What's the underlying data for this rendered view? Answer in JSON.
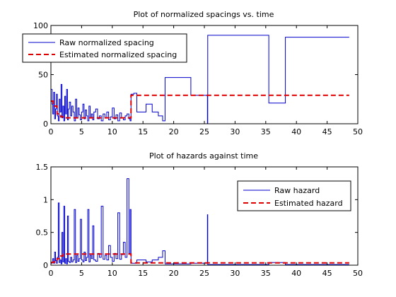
{
  "chart_data": [
    {
      "type": "line",
      "title": "Plot of normalized spacings vs. time",
      "xlabel": "",
      "ylabel": "",
      "xlim": [
        0,
        50
      ],
      "ylim": [
        0,
        100
      ],
      "xticks": [
        "0",
        "5",
        "10",
        "15",
        "20",
        "25",
        "30",
        "35",
        "40",
        "45",
        "50"
      ],
      "yticks": [
        "0",
        "50",
        "100"
      ],
      "grid": false,
      "legend_position": "top-left",
      "series": [
        {
          "name": "Raw normalized spacing",
          "color": "#0000cc",
          "style": "solid-stairs",
          "x": [
            0.05,
            0.2,
            0.3,
            0.45,
            0.6,
            0.75,
            0.9,
            1.05,
            1.2,
            1.35,
            1.5,
            1.65,
            1.8,
            1.95,
            2.1,
            2.25,
            2.4,
            2.55,
            2.7,
            2.85,
            3.0,
            3.2,
            3.4,
            3.6,
            3.8,
            4.0,
            4.2,
            4.4,
            4.6,
            4.8,
            5.0,
            5.2,
            5.4,
            5.6,
            5.8,
            6.0,
            6.2,
            6.4,
            6.6,
            6.8,
            7.0,
            7.3,
            7.6,
            7.9,
            8.2,
            8.5,
            8.8,
            9.1,
            9.4,
            9.7,
            10.0,
            10.3,
            10.6,
            10.9,
            11.2,
            11.5,
            11.8,
            12.1,
            12.4,
            12.7,
            12.9,
            13.05,
            13.5,
            14.0,
            15.5,
            16.5,
            17.5,
            18.2,
            18.6,
            19.0,
            22.8,
            25.5,
            25.55,
            25.7,
            35.5,
            38.2,
            48.6
          ],
          "y": [
            35,
            20,
            10,
            32,
            5,
            15,
            30,
            8,
            3,
            25,
            12,
            40,
            6,
            18,
            3,
            28,
            10,
            35,
            4,
            15,
            22,
            8,
            18,
            12,
            3,
            25,
            6,
            16,
            9,
            4,
            12,
            20,
            5,
            14,
            8,
            3,
            18,
            6,
            10,
            4,
            12,
            15,
            5,
            8,
            3,
            10,
            6,
            12,
            4,
            7,
            16,
            5,
            9,
            3,
            11,
            6,
            4,
            8,
            10,
            5,
            3,
            30,
            31,
            12,
            20,
            12,
            8,
            3,
            47,
            47,
            29,
            0,
            90,
            90,
            21,
            88,
            88
          ]
        },
        {
          "name": "Estimated normalized spacing",
          "color": "#e00000",
          "style": "dashed-stairs",
          "x": [
            0.05,
            0.4,
            1.0,
            1.6,
            2.0,
            13.05,
            48.6
          ],
          "y": [
            23,
            18,
            10,
            7,
            6,
            29,
            29
          ]
        }
      ]
    },
    {
      "type": "line",
      "title": "Plot of hazards against time",
      "xlabel": "",
      "ylabel": "",
      "xlim": [
        0,
        50
      ],
      "ylim": [
        0,
        1.5
      ],
      "xticks": [
        "0",
        "5",
        "10",
        "15",
        "20",
        "25",
        "30",
        "35",
        "40",
        "45",
        "50"
      ],
      "yticks": [
        "0",
        "0.5",
        "1",
        "1.5"
      ],
      "grid": false,
      "legend_position": "top-right",
      "series": [
        {
          "name": "Raw hazard",
          "color": "#0000cc",
          "style": "solid-stairs",
          "x": [
            0.05,
            0.2,
            0.3,
            0.45,
            0.6,
            0.75,
            0.9,
            1.05,
            1.2,
            1.35,
            1.5,
            1.65,
            1.8,
            1.95,
            2.1,
            2.25,
            2.4,
            2.55,
            2.7,
            2.85,
            3.0,
            3.2,
            3.4,
            3.6,
            3.8,
            4.0,
            4.2,
            4.4,
            4.6,
            4.8,
            5.0,
            5.2,
            5.4,
            5.6,
            5.8,
            6.0,
            6.2,
            6.4,
            6.6,
            6.8,
            7.0,
            7.3,
            7.6,
            7.9,
            8.2,
            8.5,
            8.8,
            9.1,
            9.4,
            9.7,
            10.0,
            10.3,
            10.6,
            10.9,
            11.2,
            11.5,
            11.8,
            12.1,
            12.4,
            12.7,
            12.9,
            13.05,
            13.5,
            14.0,
            15.5,
            16.5,
            17.5,
            18.2,
            18.6,
            19.0,
            22.8,
            25.5,
            25.55,
            25.7,
            35.5,
            38.2,
            48.6
          ],
          "y": [
            0.03,
            0.05,
            0.1,
            0.03,
            0.2,
            0.07,
            0.03,
            0.12,
            0.95,
            0.04,
            0.08,
            0.02,
            0.5,
            0.05,
            0.9,
            0.03,
            0.1,
            0.02,
            0.75,
            0.06,
            0.04,
            0.12,
            0.05,
            0.08,
            0.85,
            0.04,
            0.15,
            0.06,
            0.1,
            0.7,
            0.08,
            0.05,
            0.2,
            0.07,
            0.12,
            0.85,
            0.05,
            0.15,
            0.1,
            0.6,
            0.08,
            0.06,
            0.18,
            0.12,
            0.9,
            0.09,
            0.15,
            0.08,
            0.3,
            0.12,
            0.06,
            0.18,
            0.1,
            0.8,
            0.09,
            0.16,
            0.35,
            0.12,
            1.32,
            0.18,
            0.85,
            0.03,
            0.03,
            0.08,
            0.05,
            0.08,
            0.12,
            0.22,
            0.02,
            0.02,
            0.03,
            0.77,
            0.01,
            0.01,
            0.04,
            0.01,
            0.01
          ]
        },
        {
          "name": "Estimated hazard",
          "color": "#e00000",
          "style": "dashed-stairs",
          "x": [
            0.05,
            0.4,
            1.0,
            1.6,
            2.0,
            13.05,
            48.6
          ],
          "y": [
            0.04,
            0.05,
            0.1,
            0.14,
            0.17,
            0.035,
            0.035
          ]
        }
      ]
    }
  ]
}
